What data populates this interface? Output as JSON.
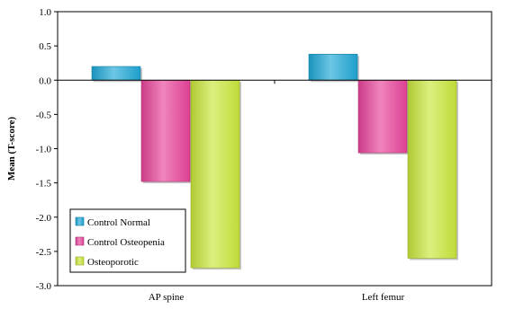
{
  "chart_data": {
    "type": "bar",
    "title": "",
    "xlabel": "",
    "ylabel": "Mean (T-score)",
    "ylim": [
      -3.0,
      1.0
    ],
    "yticks": [
      1.0,
      0.5,
      0.0,
      -0.5,
      -1.0,
      -1.5,
      -2.0,
      -2.5,
      -3.0
    ],
    "ytick_labels": [
      "1.0",
      "0.5",
      "0.0",
      "-0.5",
      "-1.0",
      "-1.5",
      "-2.0",
      "-2.5",
      "-3.0"
    ],
    "categories": [
      "AP spine",
      "Left femur"
    ],
    "series": [
      {
        "name": "Control Normal",
        "color": "#1ea7d6",
        "values": [
          0.2,
          0.38
        ]
      },
      {
        "name": "Control Osteopenia",
        "color": "#e8439a",
        "values": [
          -1.48,
          -1.06
        ]
      },
      {
        "name": "Osteoporotic",
        "color": "#c8e63a",
        "values": [
          -2.74,
          -2.6
        ]
      }
    ],
    "grid": false,
    "legend_position": "bottom-left"
  }
}
